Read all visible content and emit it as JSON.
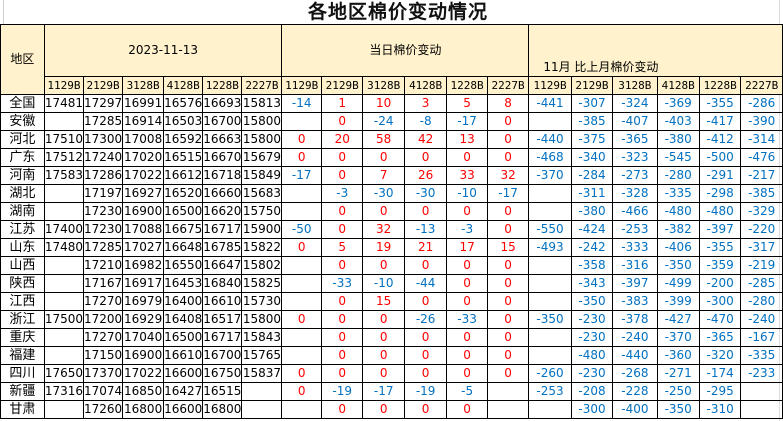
{
  "title": "各地区棉价变动情况",
  "header": {
    "region_label": "地区",
    "date": "2023-11-13",
    "daily_change": "当日棉价变动",
    "monthly_change": "11月 比上月棉价变动"
  },
  "contracts": [
    "1129B",
    "2129B",
    "3128B",
    "4128B",
    "1228B",
    "2227B"
  ],
  "colors": {
    "positive": "#ff0000",
    "negative": "#0070c0",
    "header_bg": "#fff2cc"
  },
  "rows": [
    {
      "region": "全国",
      "price": [
        17481,
        17297,
        16991,
        16576,
        16693,
        15813
      ],
      "daily": [
        -14,
        1,
        10,
        3,
        5,
        8
      ],
      "monthly": [
        -441,
        -307,
        -324,
        -369,
        -355,
        -286
      ]
    },
    {
      "region": "安徽",
      "price": [
        null,
        17285,
        16914,
        16503,
        16700,
        15800
      ],
      "daily": [
        null,
        0,
        -24,
        -8,
        -17,
        0
      ],
      "monthly": [
        null,
        -385,
        -407,
        -403,
        -417,
        -390
      ]
    },
    {
      "region": "河北",
      "price": [
        17510,
        17300,
        17008,
        16592,
        16663,
        15800
      ],
      "daily": [
        0,
        20,
        58,
        42,
        13,
        0
      ],
      "monthly": [
        -440,
        -375,
        -365,
        -380,
        -412,
        -314
      ]
    },
    {
      "region": "广东",
      "price": [
        17512,
        17240,
        17020,
        16515,
        16670,
        15679
      ],
      "daily": [
        0,
        0,
        0,
        0,
        0,
        0
      ],
      "monthly": [
        -468,
        -340,
        -323,
        -545,
        -500,
        -476
      ]
    },
    {
      "region": "河南",
      "price": [
        17583,
        17286,
        17022,
        16612,
        16718,
        15849
      ],
      "daily": [
        -17,
        0,
        7,
        26,
        33,
        32
      ],
      "monthly": [
        -370,
        -284,
        -273,
        -280,
        -291,
        -217
      ]
    },
    {
      "region": "湖北",
      "price": [
        null,
        17197,
        16927,
        16520,
        16660,
        15683
      ],
      "daily": [
        null,
        -3,
        -30,
        -30,
        -10,
        -17
      ],
      "monthly": [
        null,
        -311,
        -328,
        -335,
        -298,
        -385
      ]
    },
    {
      "region": "湖南",
      "price": [
        null,
        17230,
        16900,
        16500,
        16620,
        15750
      ],
      "daily": [
        null,
        0,
        0,
        0,
        0,
        0
      ],
      "monthly": [
        null,
        -380,
        -466,
        -480,
        -480,
        -329
      ]
    },
    {
      "region": "江苏",
      "price": [
        17400,
        17230,
        17088,
        16675,
        16717,
        15900
      ],
      "daily": [
        -50,
        0,
        32,
        -13,
        -3,
        0
      ],
      "monthly": [
        -550,
        -424,
        -253,
        -382,
        -397,
        -220
      ]
    },
    {
      "region": "山东",
      "price": [
        17480,
        17285,
        17027,
        16648,
        16785,
        15822
      ],
      "daily": [
        0,
        5,
        19,
        21,
        17,
        15
      ],
      "monthly": [
        -493,
        -242,
        -333,
        -406,
        -355,
        -317
      ]
    },
    {
      "region": "山西",
      "price": [
        null,
        17210,
        16982,
        16550,
        16647,
        15802
      ],
      "daily": [
        null,
        0,
        0,
        0,
        0,
        0
      ],
      "monthly": [
        null,
        -358,
        -316,
        -350,
        -359,
        -219
      ]
    },
    {
      "region": "陕西",
      "price": [
        null,
        17167,
        16917,
        16453,
        16840,
        15825
      ],
      "daily": [
        null,
        -33,
        -10,
        -44,
        0,
        0
      ],
      "monthly": [
        null,
        -343,
        -397,
        -499,
        -200,
        -285
      ]
    },
    {
      "region": "江西",
      "price": [
        null,
        17270,
        16979,
        16400,
        16610,
        15730
      ],
      "daily": [
        null,
        0,
        15,
        0,
        0,
        0
      ],
      "monthly": [
        null,
        -350,
        -383,
        -399,
        -300,
        -280
      ]
    },
    {
      "region": "浙江",
      "price": [
        17500,
        17200,
        16929,
        16408,
        16517,
        15800
      ],
      "daily": [
        0,
        0,
        0,
        -26,
        -33,
        0
      ],
      "monthly": [
        -350,
        -230,
        -378,
        -427,
        -470,
        -240
      ]
    },
    {
      "region": "重庆",
      "price": [
        null,
        17270,
        17040,
        16500,
        16717,
        15843
      ],
      "daily": [
        null,
        0,
        0,
        0,
        0,
        0
      ],
      "monthly": [
        null,
        -230,
        -240,
        -370,
        -365,
        -167
      ]
    },
    {
      "region": "福建",
      "price": [
        null,
        17150,
        16900,
        16610,
        16700,
        15765
      ],
      "daily": [
        null,
        0,
        0,
        0,
        0,
        0
      ],
      "monthly": [
        null,
        -480,
        -440,
        -360,
        -320,
        -335
      ]
    },
    {
      "region": "四川",
      "price": [
        17650,
        17370,
        17022,
        16600,
        16750,
        15837
      ],
      "daily": [
        0,
        0,
        0,
        0,
        0,
        0
      ],
      "monthly": [
        -260,
        -230,
        -268,
        -271,
        -174,
        -233
      ]
    },
    {
      "region": "新疆",
      "price": [
        17316,
        17074,
        16850,
        16427,
        16515,
        null
      ],
      "daily": [
        0,
        -19,
        -17,
        -19,
        -5,
        null
      ],
      "monthly": [
        -253,
        -208,
        -228,
        -250,
        -295,
        null
      ]
    },
    {
      "region": "甘肃",
      "price": [
        null,
        17260,
        16800,
        16600,
        16800,
        null
      ],
      "daily": [
        null,
        0,
        0,
        0,
        0,
        null
      ],
      "monthly": [
        null,
        -300,
        -400,
        -350,
        -310,
        null
      ]
    }
  ]
}
